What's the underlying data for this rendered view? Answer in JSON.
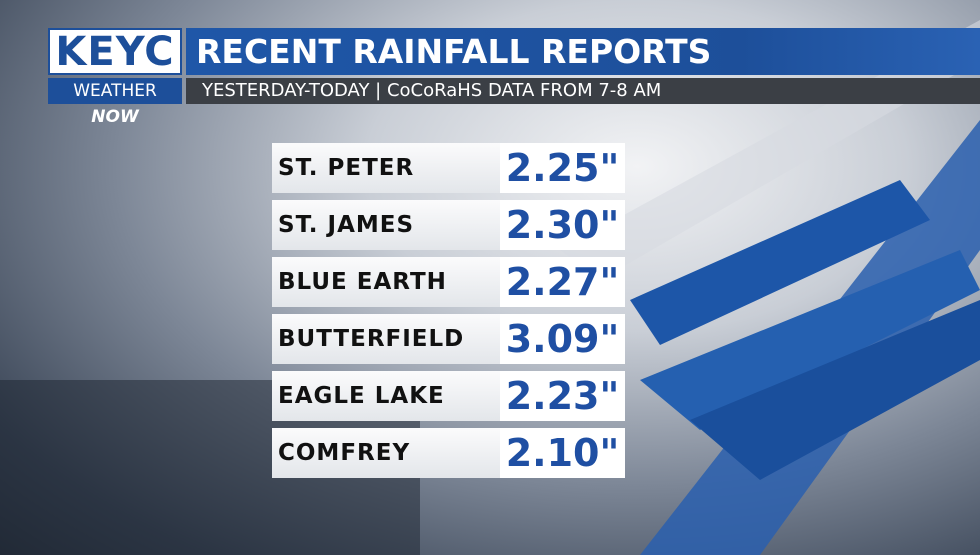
{
  "logo": {
    "station": "KEYC",
    "weather": "WEATHER",
    "now": "NOW"
  },
  "header": {
    "title": "RECENT RAINFALL REPORTS",
    "subtitle": "YESTERDAY-TODAY | CoCoRaHS DATA FROM 7-8 AM"
  },
  "table": {
    "rows": [
      [
        "ST. PETER",
        "2.25\""
      ],
      [
        "ST. JAMES",
        "2.30\""
      ],
      [
        "BLUE EARTH",
        "2.27\""
      ],
      [
        "BUTTERFIELD",
        "3.09\""
      ],
      [
        "EAGLE LAKE",
        "2.23\""
      ],
      [
        "COMFREY",
        "2.10\""
      ]
    ]
  }
}
